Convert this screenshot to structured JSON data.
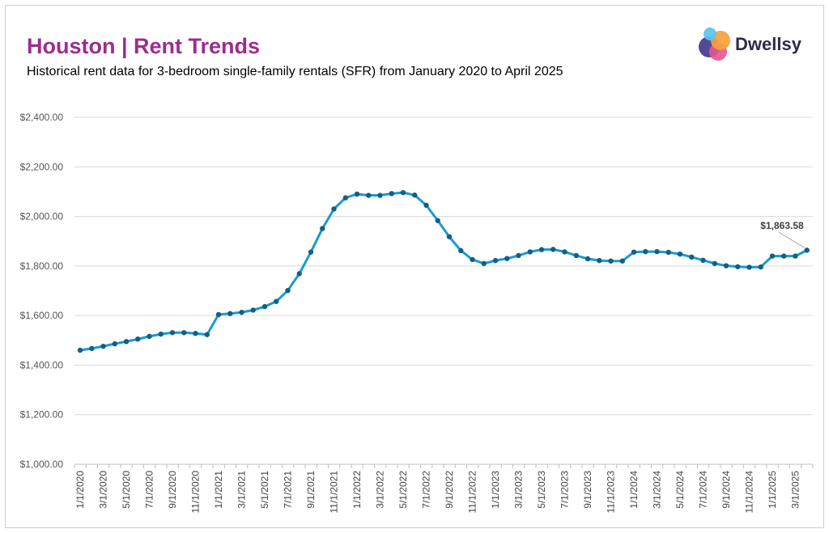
{
  "header": {
    "title": "Houston | Rent Trends",
    "subtitle": "Historical rent data for 3-bedroom single-family rentals (SFR) from January 2020 to April 2025",
    "brand": "Dwellsy"
  },
  "colors": {
    "title": "#9b2d8f",
    "line": "#1a9bd0",
    "marker": "#145f82",
    "grid": "#d9d9d9"
  },
  "chart_data": {
    "type": "line",
    "title": "Houston | Rent Trends",
    "subtitle": "Historical rent data for 3-bedroom single-family rentals (SFR) from January 2020 to April 2025",
    "ylim": [
      1000,
      2400
    ],
    "y_ticks": [
      "$1,000.00",
      "$1,200.00",
      "$1,400.00",
      "$1,600.00",
      "$1,800.00",
      "$2,000.00",
      "$2,200.00",
      "$2,400.00"
    ],
    "x_tick_labels": [
      "1/1/2020",
      "3/1/2020",
      "5/1/2020",
      "7/1/2020",
      "9/1/2020",
      "11/1/2020",
      "1/1/2021",
      "3/1/2021",
      "5/1/2021",
      "7/1/2021",
      "9/1/2021",
      "11/1/2021",
      "1/1/2022",
      "3/1/2022",
      "5/1/2022",
      "7/1/2022",
      "9/1/2022",
      "11/1/2022",
      "1/1/2023",
      "3/1/2023",
      "5/1/2023",
      "7/1/2023",
      "9/1/2023",
      "11/1/2023",
      "1/1/2024",
      "3/1/2024",
      "5/1/2024",
      "7/1/2024",
      "9/1/2024",
      "11/1/2024",
      "1/1/2025",
      "3/1/2025"
    ],
    "grid": true,
    "legend": "none",
    "series": [
      {
        "x": [
          "1/1/2020",
          "2/1/2020",
          "3/1/2020",
          "4/1/2020",
          "5/1/2020",
          "6/1/2020",
          "7/1/2020",
          "8/1/2020",
          "9/1/2020",
          "10/1/2020",
          "11/1/2020",
          "12/1/2020",
          "1/1/2021",
          "2/1/2021",
          "3/1/2021",
          "4/1/2021",
          "5/1/2021",
          "6/1/2021",
          "7/1/2021",
          "8/1/2021",
          "9/1/2021",
          "10/1/2021",
          "11/1/2021",
          "12/1/2021",
          "1/1/2022",
          "2/1/2022",
          "3/1/2022",
          "4/1/2022",
          "5/1/2022",
          "6/1/2022",
          "7/1/2022",
          "8/1/2022",
          "9/1/2022",
          "10/1/2022",
          "11/1/2022",
          "12/1/2022",
          "1/1/2023",
          "2/1/2023",
          "3/1/2023",
          "4/1/2023",
          "5/1/2023",
          "6/1/2023",
          "7/1/2023",
          "8/1/2023",
          "9/1/2023",
          "10/1/2023",
          "11/1/2023",
          "12/1/2023",
          "1/1/2024",
          "2/1/2024",
          "3/1/2024",
          "4/1/2024",
          "5/1/2024",
          "6/1/2024",
          "7/1/2024",
          "8/1/2024",
          "9/1/2024",
          "10/1/2024",
          "11/1/2024",
          "12/1/2024",
          "1/1/2025",
          "2/1/2025",
          "3/1/2025",
          "4/1/2025"
        ],
        "values": [
          1460,
          1467,
          1476,
          1486,
          1495,
          1505,
          1516,
          1525,
          1531,
          1531,
          1528,
          1523,
          1604,
          1608,
          1613,
          1622,
          1636,
          1657,
          1701,
          1769,
          1856,
          1951,
          2030,
          2075,
          2090,
          2085,
          2085,
          2092,
          2096,
          2086,
          2045,
          1983,
          1918,
          1862,
          1826,
          1810,
          1822,
          1830,
          1842,
          1857,
          1866,
          1867,
          1857,
          1842,
          1829,
          1822,
          1820,
          1820,
          1856,
          1858,
          1858,
          1855,
          1848,
          1836,
          1823,
          1810,
          1801,
          1797,
          1795,
          1796,
          1840,
          1840,
          1840,
          1863.58
        ]
      }
    ],
    "annotations": [
      {
        "text": "$1,863.58",
        "x": "4/1/2025",
        "y": 1863.58
      }
    ]
  }
}
